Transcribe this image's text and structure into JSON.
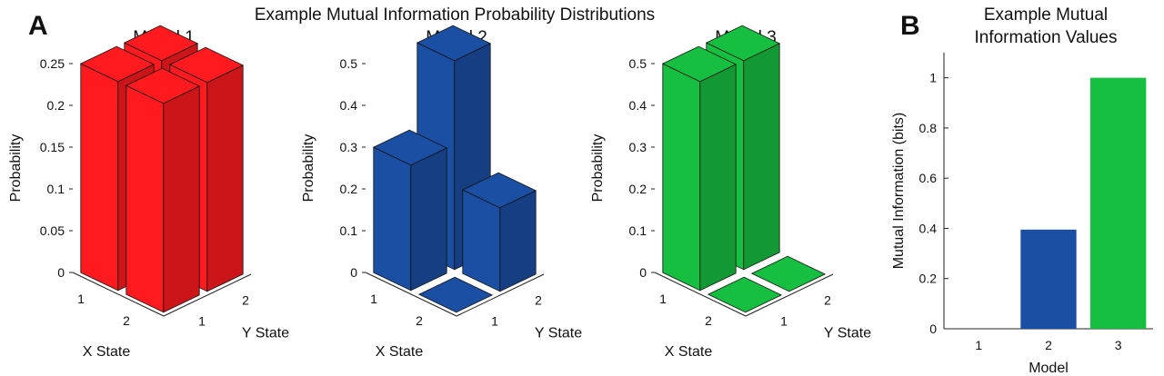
{
  "panel_a": {
    "letter": "A",
    "title": "Example Mutual Information Probability Distributions"
  },
  "panel_b": {
    "letter": "B",
    "title_line1": "Example Mutual",
    "title_line2": "Information Values"
  },
  "chart_data": [
    {
      "type": "bar3d",
      "title": "Model 1",
      "xlabel": "X State",
      "ylabel": "Y State",
      "zlabel": "Probability",
      "x_states": [
        "1",
        "2"
      ],
      "y_states": [
        "1",
        "2"
      ],
      "zlim": [
        0,
        0.25
      ],
      "zticks": [
        "0",
        "0.05",
        "0.1",
        "0.15",
        "0.2",
        "0.25"
      ],
      "values": [
        [
          0.25,
          0.25
        ],
        [
          0.25,
          0.25
        ]
      ],
      "color": "#ff1a1f"
    },
    {
      "type": "bar3d",
      "title": "Model 2",
      "xlabel": "X State",
      "ylabel": "Y State",
      "zlabel": "Probability",
      "x_states": [
        "1",
        "2"
      ],
      "y_states": [
        "1",
        "2"
      ],
      "zlim": [
        0,
        0.5
      ],
      "zticks": [
        "0",
        "0.1",
        "0.2",
        "0.3",
        "0.4",
        "0.5"
      ],
      "values": [
        [
          0.3,
          0.5
        ],
        [
          0,
          0.2
        ]
      ],
      "color": "#1a4fa3"
    },
    {
      "type": "bar3d",
      "title": "Model 3",
      "xlabel": "X State",
      "ylabel": "Y State",
      "zlabel": "Probability",
      "x_states": [
        "1",
        "2"
      ],
      "y_states": [
        "1",
        "2"
      ],
      "zlim": [
        0,
        0.5
      ],
      "zticks": [
        "0",
        "0.1",
        "0.2",
        "0.3",
        "0.4",
        "0.5"
      ],
      "values": [
        [
          0.5,
          0.5
        ],
        [
          0,
          0
        ]
      ],
      "color": "#16bf40"
    },
    {
      "type": "bar",
      "xlabel": "Model",
      "ylabel": "Mutual Information (bits)",
      "categories": [
        "1",
        "2",
        "3"
      ],
      "values": [
        0,
        0.395,
        1.0
      ],
      "colors": [
        "#ff1a1f",
        "#1a4fa3",
        "#16bf40"
      ],
      "ylim": [
        0,
        1.1
      ],
      "yticks": [
        "0",
        "0.2",
        "0.4",
        "0.6",
        "0.8",
        "1"
      ]
    }
  ]
}
